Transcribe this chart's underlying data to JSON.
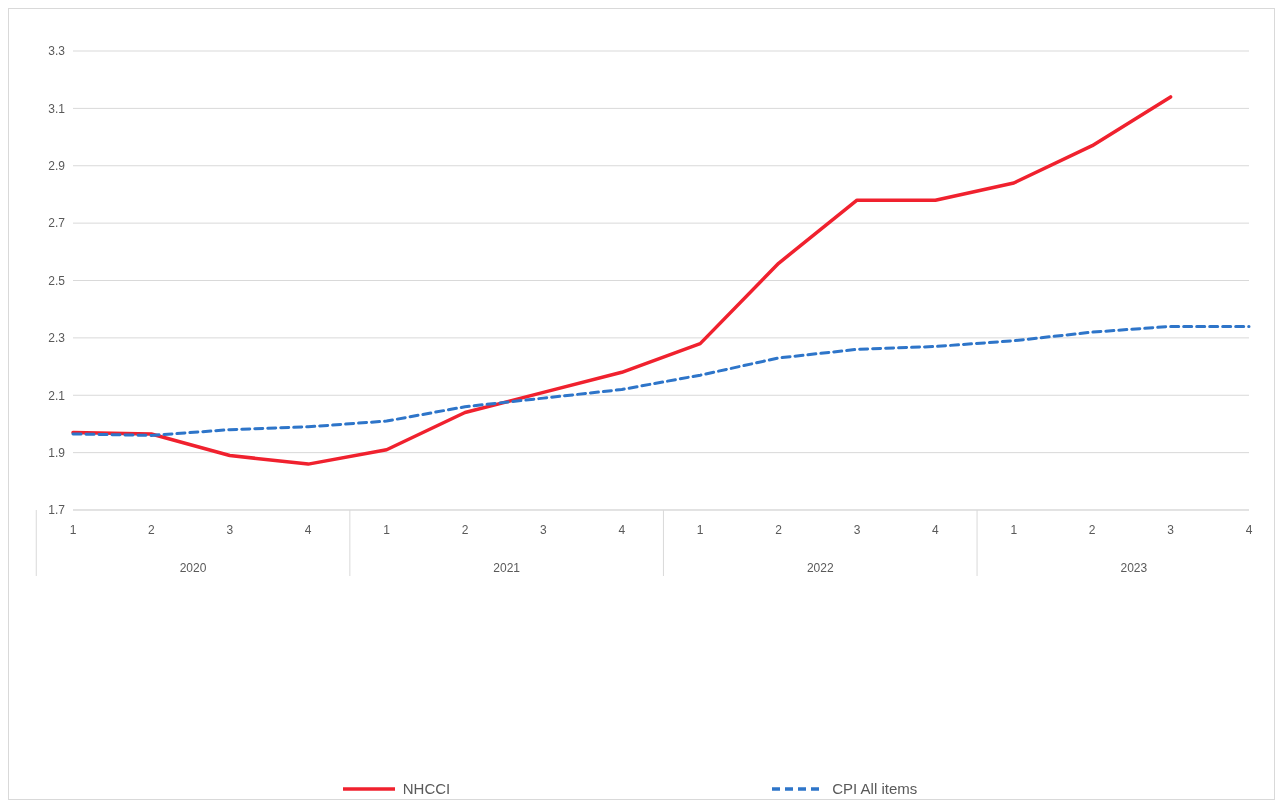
{
  "chart_data": {
    "type": "line",
    "categories": [
      "1",
      "2",
      "3",
      "4",
      "1",
      "2",
      "3",
      "4",
      "1",
      "2",
      "3",
      "4",
      "1",
      "2",
      "3",
      "4"
    ],
    "annotations": [
      "2020",
      "2021",
      "2022",
      "2023"
    ],
    "series": [
      {
        "name": "NHCCI",
        "color": "#f0212e",
        "line_style": "solid",
        "values": [
          1.97,
          1.965,
          1.89,
          1.86,
          1.91,
          2.04,
          2.11,
          2.18,
          2.28,
          2.56,
          2.78,
          2.78,
          2.84,
          2.97,
          3.14,
          null
        ]
      },
      {
        "name": "CPI All items",
        "color": "#2e75c9",
        "line_style": "dashed",
        "values": [
          1.965,
          1.96,
          1.98,
          1.99,
          2.01,
          2.06,
          2.09,
          2.12,
          2.17,
          2.23,
          2.26,
          2.27,
          2.29,
          2.32,
          2.34,
          2.34
        ]
      }
    ],
    "ylim": [
      1.7,
      3.3
    ],
    "yticks": [
      1.7,
      1.9,
      2.1,
      2.3,
      2.5,
      2.7,
      2.9,
      3.1,
      3.3
    ],
    "grid": "y",
    "legend": "bottom",
    "marker": "none"
  }
}
